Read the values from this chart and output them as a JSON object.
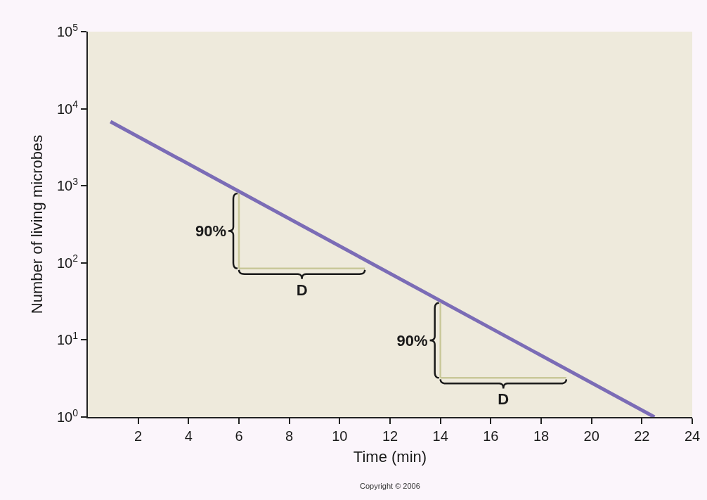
{
  "chart_data": {
    "type": "line",
    "xlabel": "Time (min)",
    "ylabel": "Number of living microbes",
    "series": [
      {
        "color": "#7b6cb6",
        "x": [
          0.9,
          22.5
        ],
        "values": [
          6800,
          1
        ]
      }
    ],
    "xlim": [
      0,
      24
    ],
    "xticks": [
      2,
      4,
      6,
      8,
      10,
      12,
      14,
      16,
      18,
      20,
      22,
      24
    ],
    "ylim": [
      1,
      100000
    ],
    "yticks": [
      {
        "value": 1,
        "label": "10$^{0}$"
      },
      {
        "value": 10,
        "label": "10$^{1}$"
      },
      {
        "value": 100,
        "label": "10$^{2}$"
      },
      {
        "value": 1000,
        "label": "10$^{3}$"
      },
      {
        "value": 10000,
        "label": "10$^{4}$"
      },
      {
        "value": 100000,
        "label": "10$^{5}$"
      }
    ],
    "log": "y",
    "grid": false,
    "marker": "none",
    "line_style": "solid",
    "annotations": [
      "90%",
      "D",
      "90%",
      "D",
      "Copyright © 2006"
    ]
  }
}
